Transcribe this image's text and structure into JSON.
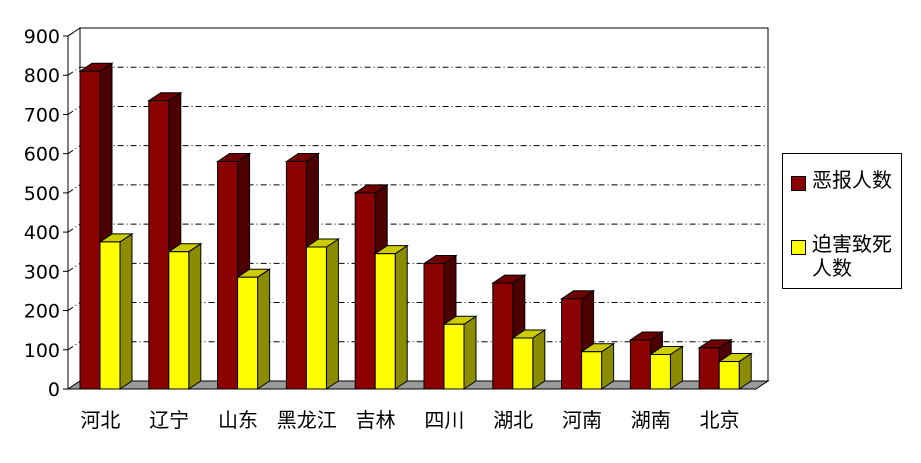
{
  "chart_data": {
    "type": "bar",
    "categories": [
      "河北",
      "辽宁",
      "山东",
      "黑龙江",
      "吉林",
      "四川",
      "湖北",
      "河南",
      "湖南",
      "北京"
    ],
    "series": [
      {
        "name": "恶报人数",
        "color": "#8b0000",
        "values": [
          810,
          735,
          580,
          580,
          500,
          320,
          270,
          230,
          125,
          105
        ]
      },
      {
        "name": "迫害致死人数",
        "color": "#ffff00",
        "values": [
          375,
          350,
          285,
          362,
          345,
          165,
          130,
          95,
          88,
          70
        ]
      }
    ],
    "yticks": [
      0,
      100,
      200,
      300,
      400,
      500,
      600,
      700,
      800,
      900
    ],
    "ylim": [
      0,
      900
    ],
    "title": "",
    "xlabel": "",
    "ylabel": "",
    "grid": true,
    "legend_position": "right"
  },
  "legend": {
    "items": [
      {
        "label": "恶报人数",
        "color": "#8b0000"
      },
      {
        "label": "迫害致死人数",
        "color": "#ffff00"
      }
    ]
  }
}
